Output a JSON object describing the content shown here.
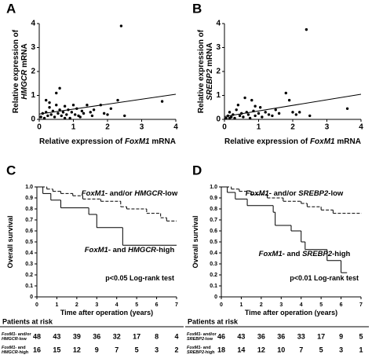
{
  "chart_data": [
    {
      "type": "scatter",
      "panel": "A",
      "x_label": [
        [
          {
            "t": "Relative expression of "
          },
          {
            "t": "FoxM1",
            "i": true
          },
          {
            "t": " mRNA"
          }
        ]
      ],
      "y_label": [
        [
          {
            "t": "Relative expression of"
          }
        ],
        [
          {
            "t": "HMGCR",
            "i": true
          },
          {
            "t": " mRNA"
          }
        ]
      ],
      "x": [
        0.05,
        0.1,
        0.15,
        0.2,
        0.25,
        0.3,
        0.35,
        0.4,
        0.45,
        0.5,
        0.5,
        0.55,
        0.6,
        0.6,
        0.65,
        0.7,
        0.75,
        0.8,
        0.85,
        0.9,
        0.95,
        1.0,
        1.05,
        1.1,
        1.2,
        1.25,
        1.3,
        1.4,
        1.5,
        1.55,
        1.6,
        1.8,
        1.9,
        2.0,
        2.1,
        2.3,
        2.4,
        2.5,
        3.6,
        0.2,
        0.3,
        0.75,
        1.15
      ],
      "values": [
        0.1,
        0.25,
        0.05,
        0.3,
        0.15,
        0.5,
        0.2,
        0.35,
        0.1,
        0.6,
        1.1,
        0.25,
        1.3,
        0.4,
        0.15,
        0.3,
        0.55,
        0.2,
        0.4,
        0.05,
        0.3,
        0.6,
        0.2,
        0.45,
        0.1,
        0.35,
        0.25,
        0.6,
        0.3,
        0.15,
        0.4,
        0.6,
        0.25,
        0.2,
        0.45,
        0.8,
        3.9,
        0.15,
        0.75,
        0.8,
        0.7,
        0.05,
        0.15
      ],
      "color": "#000000",
      "fit": {
        "x": [
          0,
          4
        ],
        "values": [
          0.22,
          1.05
        ]
      },
      "xlim": [
        0,
        4
      ],
      "ylim": [
        0,
        4
      ],
      "xticks": [
        0,
        1,
        2,
        3,
        4
      ],
      "yticks": [
        0,
        1,
        2,
        3,
        4
      ]
    },
    {
      "type": "scatter",
      "panel": "B",
      "x_label": [
        [
          {
            "t": "Relative expression of "
          },
          {
            "t": "FoxM1",
            "i": true
          },
          {
            "t": " mRNA"
          }
        ]
      ],
      "y_label": [
        [
          {
            "t": "Relative expression of"
          }
        ],
        [
          {
            "t": "SREBP2",
            "i": true
          },
          {
            "t": " mRNA"
          }
        ]
      ],
      "x": [
        0.05,
        0.1,
        0.15,
        0.2,
        0.25,
        0.3,
        0.35,
        0.4,
        0.45,
        0.5,
        0.55,
        0.6,
        0.65,
        0.7,
        0.75,
        0.8,
        0.85,
        0.9,
        1.0,
        1.05,
        1.1,
        1.2,
        1.3,
        1.4,
        1.5,
        1.6,
        1.8,
        1.9,
        2.0,
        2.1,
        2.2,
        2.4,
        2.5,
        3.6,
        0.9,
        0.15
      ],
      "values": [
        0.05,
        0.15,
        0.3,
        0.1,
        0.2,
        0.05,
        0.4,
        0.6,
        0.15,
        0.25,
        0.1,
        0.9,
        0.3,
        0.2,
        0.05,
        0.8,
        0.35,
        0.15,
        0.25,
        0.5,
        0.1,
        0.3,
        0.2,
        0.15,
        0.4,
        0.25,
        1.1,
        0.8,
        0.3,
        0.2,
        0.3,
        3.75,
        0.15,
        0.45,
        0.55,
        0.05
      ],
      "color": "#000000",
      "fit": {
        "x": [
          0,
          4
        ],
        "values": [
          0.12,
          1.05
        ]
      },
      "xlim": [
        0,
        4
      ],
      "ylim": [
        0,
        4
      ],
      "xticks": [
        0,
        1,
        2,
        3,
        4
      ],
      "yticks": [
        0,
        1,
        2,
        3,
        4
      ]
    },
    {
      "type": "step",
      "panel": "C",
      "x_label": [
        [
          {
            "t": "Time after operation (years)"
          }
        ]
      ],
      "y_label": [
        [
          {
            "t": "Overall survival"
          }
        ]
      ],
      "series": [
        {
          "style": "dashed",
          "color": "#000000",
          "x": [
            0,
            0.5,
            0.8,
            1.2,
            1.8,
            2.3,
            3.2,
            4.2,
            4.5,
            5.5,
            6.2,
            6.5,
            7
          ],
          "values": [
            1,
            0.98,
            0.96,
            0.94,
            0.92,
            0.89,
            0.87,
            0.82,
            0.8,
            0.76,
            0.72,
            0.69,
            0.69
          ]
        },
        {
          "style": "solid",
          "color": "#000000",
          "x": [
            0,
            0.3,
            0.7,
            1.2,
            2.6,
            3.0,
            4.3,
            7
          ],
          "values": [
            1,
            0.94,
            0.88,
            0.81,
            0.75,
            0.63,
            0.47,
            0.47
          ]
        }
      ],
      "annotations": [
        [
          [
            {
              "t": "FoxM1",
              "i": true
            },
            {
              "t": "- and/or "
            },
            {
              "t": "HMGCR",
              "i": true
            },
            {
              "t": "-low"
            }
          ]
        ],
        [
          [
            {
              "t": "FoxM1",
              "i": true
            },
            {
              "t": "- and "
            },
            {
              "t": "HMGCR",
              "i": true
            },
            {
              "t": "-high"
            }
          ]
        ],
        [
          [
            {
              "t": "p<0.05 Log-rank test"
            }
          ]
        ]
      ],
      "xlim": [
        0,
        7
      ],
      "ylim": [
        0,
        1
      ],
      "xticks": [
        0,
        1,
        2,
        3,
        4,
        5,
        6,
        7
      ],
      "yticks": [
        0,
        0.1,
        0.2,
        0.3,
        0.4,
        0.5,
        0.6,
        0.7,
        0.8,
        0.9,
        {
          "value": 1,
          "label": "1.0"
        }
      ],
      "risk_table": {
        "title": "Patients at risk",
        "rows": [
          {
            "label": [
              [
                {
                  "t": "FoxM1",
                  "i": true
                },
                {
                  "t": "- and/or"
                }
              ],
              [
                {
                  "t": "HMGCR",
                  "i": true
                },
                {
                  "t": "-low"
                }
              ]
            ],
            "values": [
              48,
              43,
              39,
              36,
              32,
              17,
              8,
              4
            ]
          },
          {
            "label": [
              [
                {
                  "t": "FoxM1",
                  "i": true
                },
                {
                  "t": "- and"
                }
              ],
              [
                {
                  "t": "HMGCR",
                  "i": true
                },
                {
                  "t": "-high"
                }
              ]
            ],
            "values": [
              16,
              15,
              12,
              9,
              7,
              5,
              3,
              2
            ]
          }
        ]
      }
    },
    {
      "type": "step",
      "panel": "D",
      "x_label": [
        [
          {
            "t": "Time after operation (years)"
          }
        ]
      ],
      "y_label": [
        [
          {
            "t": "Overall survival"
          }
        ]
      ],
      "series": [
        {
          "style": "dashed",
          "color": "#000000",
          "x": [
            0,
            0.5,
            0.9,
            1.5,
            2.3,
            3.1,
            4.0,
            4.3,
            5.0,
            5.6,
            7
          ],
          "values": [
            1,
            0.98,
            0.96,
            0.93,
            0.9,
            0.87,
            0.85,
            0.82,
            0.79,
            0.76,
            0.76
          ]
        },
        {
          "style": "solid",
          "color": "#000000",
          "x": [
            0,
            0.3,
            0.7,
            1.3,
            2.6,
            2.7,
            3.5,
            4.0,
            4.2,
            5.3,
            6.0,
            6.3
          ],
          "values": [
            1,
            0.95,
            0.89,
            0.83,
            0.77,
            0.65,
            0.6,
            0.5,
            0.43,
            0.33,
            0.22,
            0.22
          ]
        }
      ],
      "annotations": [
        [
          [
            {
              "t": "FoxM1",
              "i": true
            },
            {
              "t": "- and/or "
            },
            {
              "t": "SREBP2",
              "i": true
            },
            {
              "t": "-low"
            }
          ]
        ],
        [
          [
            {
              "t": "FoxM1",
              "i": true
            },
            {
              "t": "- and "
            },
            {
              "t": "SREBP2",
              "i": true
            },
            {
              "t": "-high"
            }
          ]
        ],
        [
          [
            {
              "t": "p<0.01 Log-rank test"
            }
          ]
        ]
      ],
      "xlim": [
        0,
        7
      ],
      "ylim": [
        0,
        1
      ],
      "xticks": [
        0,
        1,
        2,
        3,
        4,
        5,
        6,
        7
      ],
      "yticks": [
        0,
        0.1,
        0.2,
        0.3,
        0.4,
        0.5,
        0.6,
        0.7,
        0.8,
        0.9,
        {
          "value": 1,
          "label": "1.0"
        }
      ],
      "risk_table": {
        "title": "Patients at risk",
        "rows": [
          {
            "label": [
              [
                {
                  "t": "FoxM1",
                  "i": true
                },
                {
                  "t": "- and/or"
                }
              ],
              [
                {
                  "t": "SREBP2",
                  "i": true
                },
                {
                  "t": "-low"
                }
              ]
            ],
            "values": [
              46,
              43,
              36,
              36,
              33,
              17,
              9,
              5
            ]
          },
          {
            "label": [
              [
                {
                  "t": "FoxM1",
                  "i": true
                },
                {
                  "t": "- and"
                }
              ],
              [
                {
                  "t": "SREBP2",
                  "i": true
                },
                {
                  "t": "-high"
                }
              ]
            ],
            "values": [
              18,
              14,
              12,
              10,
              7,
              5,
              3,
              1
            ]
          }
        ]
      }
    }
  ]
}
